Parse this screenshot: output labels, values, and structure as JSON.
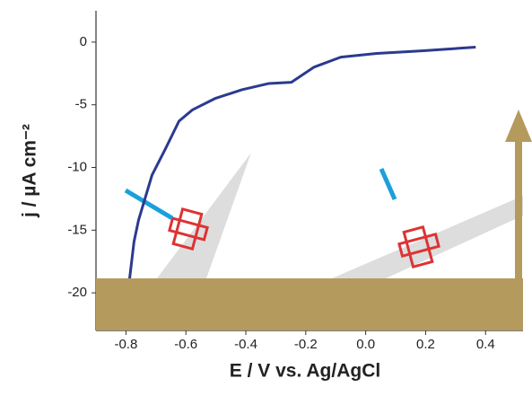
{
  "chart_data": {
    "type": "line",
    "x_label": "E / V vs. Ag/AgCl",
    "y_label": "j / µA cm⁻²",
    "series": [
      {
        "color": "#2b3a8f",
        "x": [
          -0.788,
          -0.773,
          -0.758,
          -0.713,
          -0.668,
          -0.623,
          -0.578,
          -0.503,
          -0.413,
          -0.323,
          -0.248,
          -0.173,
          -0.083,
          0.037,
          0.187,
          0.367
        ],
        "values": [
          -18.9,
          -15.9,
          -14.2,
          -10.6,
          -8.5,
          -6.3,
          -5.4,
          -4.5,
          -3.8,
          -3.3,
          -3.2,
          -2.0,
          -1.2,
          -0.9,
          -0.7,
          -0.4
        ]
      }
    ],
    "xlim": [
      -0.9,
      0.525
    ],
    "ylim": [
      -23,
      2.5
    ],
    "xticks": [
      {
        "value": -0.8,
        "label": "-0.8"
      },
      {
        "value": -0.6,
        "label": "-0.6"
      },
      {
        "value": -0.4,
        "label": "-0.4"
      },
      {
        "value": -0.2,
        "label": "-0.2"
      },
      {
        "value": 0,
        "label": "0.0"
      },
      {
        "value": 0.2,
        "label": "0.2"
      },
      {
        "value": 0.4,
        "label": "0.4"
      }
    ],
    "yticks": [
      0,
      -5,
      -10,
      -15,
      -20
    ]
  }
}
